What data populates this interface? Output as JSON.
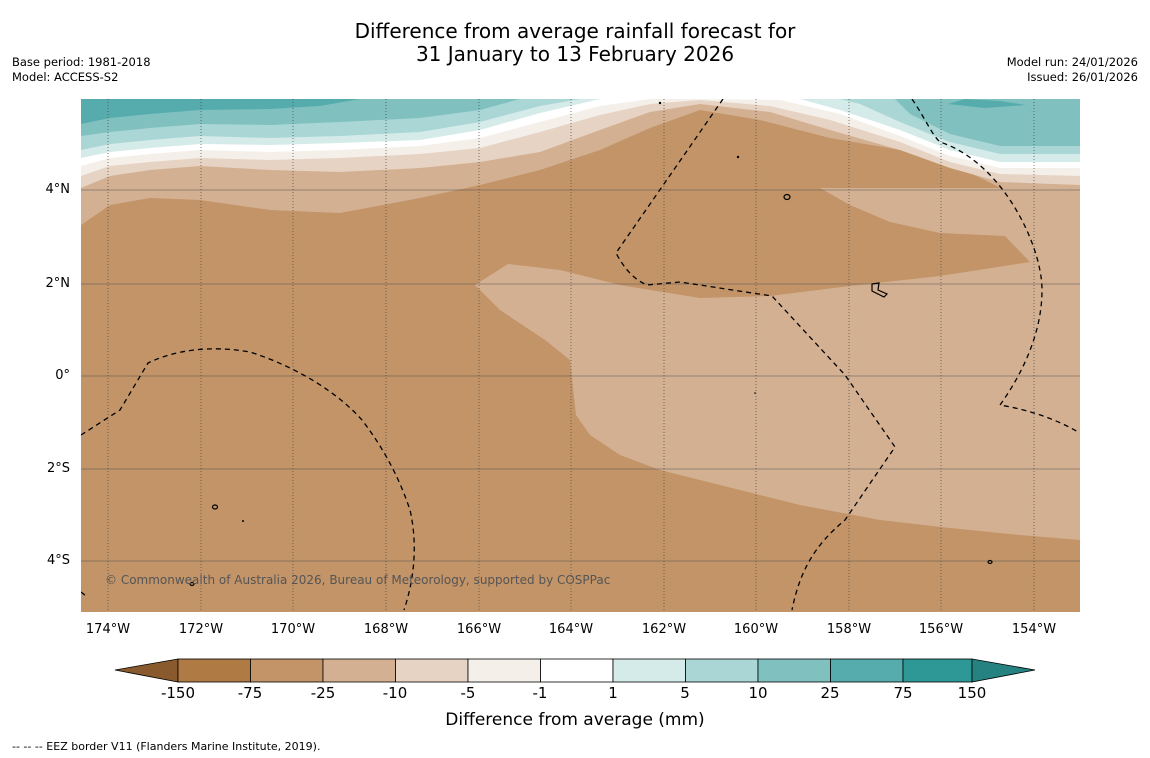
{
  "title": {
    "line1": "Difference from average rainfall forecast for",
    "line2": "31 January to 13 February 2026"
  },
  "meta": {
    "base_period": "Base period: 1981-2018",
    "model": "Model: ACCESS-S2",
    "model_run": "Model run: 24/01/2026",
    "issued": "Issued: 26/01/2026"
  },
  "map": {
    "copyright": "© Commonwealth of Australia 2026, Bureau of Meteorology, supported by COSPPac",
    "lat_labels": [
      "4°N",
      "2°N",
      "0°",
      "2°S",
      "4°S"
    ],
    "lon_labels": [
      "174°W",
      "172°W",
      "170°W",
      "168°W",
      "166°W",
      "164°W",
      "162°W",
      "160°W",
      "158°W",
      "156°W",
      "154°W"
    ]
  },
  "colorbar": {
    "title": "Difference from average (mm)",
    "labels": [
      "-150",
      "-75",
      "-25",
      "-10",
      "-5",
      "-1",
      "1",
      "5",
      "10",
      "25",
      "75",
      "150"
    ],
    "colors": {
      "below_min": "#8a5a2f",
      "bins": [
        "#b07a45",
        "#c29468",
        "#d4b092",
        "#e6d3c3",
        "#f4efe9",
        "#ffffff",
        "#d5ebe9",
        "#aad6d5",
        "#80c1c0",
        "#56acac",
        "#2e9897"
      ],
      "above_max": "#258281"
    }
  },
  "footer": "--  --  -- EEZ border V11 (Flanders Marine Institute, 2019)."
}
